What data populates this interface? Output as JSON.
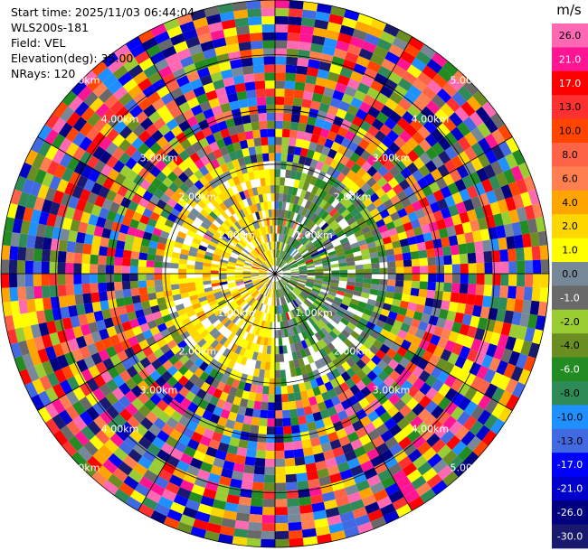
{
  "info": {
    "start_time": "Start time: 2025/11/03 06:44:04",
    "site": "WLS200s-181",
    "field": "Field: VEL",
    "elevation": "Elevation(deg): 35.00",
    "nrays": "NRays: 120"
  },
  "chart_data": {
    "type": "heatmap",
    "projection": "polar-ppi",
    "field": "VEL",
    "units": "m/s",
    "rays": 120,
    "range_rings_km": [
      1,
      2,
      3,
      4,
      5
    ],
    "ring_labels": [
      "1.00km",
      "2.00km",
      "3.00km",
      "4.00km",
      "5.00km"
    ],
    "colorbar": {
      "unit_label": "m/s",
      "ticks": [
        "26.0",
        "21.0",
        "17.0",
        "13.0",
        "10.0",
        "8.0",
        "6.0",
        "4.0",
        "2.0",
        "1.0",
        "0.0",
        "-1.0",
        "-2.0",
        "-4.0",
        "-6.0",
        "-8.0",
        "-10.0",
        "-13.0",
        "-17.0",
        "-21.0",
        "-26.0",
        "-30.0"
      ],
      "colors": [
        "#ff69b4",
        "#ff1493",
        "#ff0000",
        "#ff3030",
        "#ff4500",
        "#ff6347",
        "#ff7f50",
        "#ffa500",
        "#ffd700",
        "#ffff00",
        "#778899",
        "#696969",
        "#9acd32",
        "#6b8e23",
        "#228b22",
        "#2e8b57",
        "#1e90ff",
        "#4169e1",
        "#0000ff",
        "#0000cd",
        "#000080",
        "#191970"
      ]
    }
  }
}
